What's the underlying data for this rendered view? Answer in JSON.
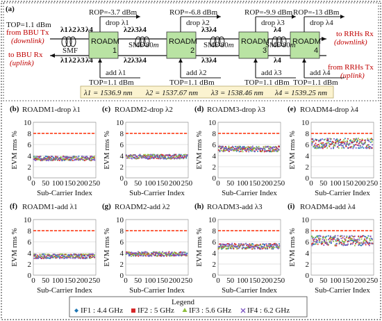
{
  "colors": {
    "lambda1": "#c00000",
    "lambda2": "#7b2c8f",
    "lambda3": "#1f8f2f",
    "lambda4": "#1f3fa0",
    "roadm": "#b9e3a3",
    "threshold": "#ff2a00",
    "banner": "#fbf3d0"
  },
  "diagram": {
    "panel": "(a)",
    "top_left": "TOP=1.1 dBm",
    "bbu_tx": "from BBU Tx",
    "downlink": "(downlink)",
    "bbu_rx": "to BBU Rx",
    "uplink": "(uplink)",
    "rrh_rx": "to RRHs Rx",
    "rrh_tx": "from RRHs Tx",
    "smf_first": "SMF",
    "smf_span": "SMF 80",
    "smf_unit": "m",
    "roadm": "ROADM",
    "rop": [
      "ROP=-3.7 dBm",
      "ROP=-6.8 dBm",
      "ROP=-9.9 dBm",
      "ROP=-13 dBm"
    ],
    "drop": [
      "drop λ1",
      "drop λ2",
      "drop λ3",
      "drop λ4"
    ],
    "add": [
      "add λ1",
      "add λ2",
      "add λ3",
      "add λ4"
    ],
    "top_bottom": "TOP=1.1 dBm",
    "lambda_labels": [
      "λ1",
      "λ2",
      "λ3",
      "λ4"
    ],
    "roadm_numbers": [
      "1",
      "2",
      "3",
      "4"
    ],
    "wavelengths": [
      "λ1 = 1536.9 nm",
      "λ2 = 1537.67 nm",
      "λ3 = 1538.46 nm",
      "λ4 = 1539.25 nm"
    ]
  },
  "chart_data": [
    {
      "type": "scatter",
      "panel": "(b)",
      "title": "ROADM1-drop λ1",
      "xlabel": "Sub-Carrier Index",
      "ylabel": "EVM rms %",
      "xlim": [
        0,
        256
      ],
      "ylim": [
        0,
        10
      ],
      "xticks": [
        0,
        50,
        100,
        150,
        200,
        250
      ],
      "threshold": 8,
      "mean_evm": 3.5,
      "spread": 0.4
    },
    {
      "type": "scatter",
      "panel": "(c)",
      "title": "ROADM2-drop λ2",
      "xlabel": "Sub-Carrier Index",
      "ylabel": "EVM rms %",
      "xlim": [
        0,
        256
      ],
      "ylim": [
        0,
        10
      ],
      "xticks": [
        0,
        50,
        100,
        150,
        200,
        250
      ],
      "threshold": 8,
      "mean_evm": 3.8,
      "spread": 0.4
    },
    {
      "type": "scatter",
      "panel": "(d)",
      "title": "ROADM3-drop λ3",
      "xlabel": "Sub-Carrier Index",
      "ylabel": "EVM rms %",
      "xlim": [
        0,
        256
      ],
      "ylim": [
        0,
        10
      ],
      "xticks": [
        0,
        50,
        100,
        150,
        200,
        250
      ],
      "threshold": 8,
      "mean_evm": 5.2,
      "spread": 0.5
    },
    {
      "type": "scatter",
      "panel": "(e)",
      "title": "ROADM4-drop λ4",
      "xlabel": "Sub-Carrier Index",
      "ylabel": "EVM rms %",
      "xlim": [
        0,
        256
      ],
      "ylim": [
        0,
        10
      ],
      "xticks": [
        0,
        50,
        100,
        150,
        200,
        250
      ],
      "threshold": 8,
      "mean_evm": 6.2,
      "spread": 0.9
    },
    {
      "type": "scatter",
      "panel": "(f)",
      "title": "ROADM1-add λ1",
      "xlabel": "Sub-Carrier Index",
      "ylabel": "EVM rms %",
      "xlim": [
        0,
        256
      ],
      "ylim": [
        0,
        10
      ],
      "xticks": [
        0,
        50,
        100,
        150,
        200,
        250
      ],
      "threshold": 8,
      "mean_evm": 3.4,
      "spread": 0.4
    },
    {
      "type": "scatter",
      "panel": "(g)",
      "title": "ROADM2-add λ2",
      "xlabel": "Sub-Carrier Index",
      "ylabel": "EVM rms %",
      "xlim": [
        0,
        256
      ],
      "ylim": [
        0,
        10
      ],
      "xticks": [
        0,
        50,
        100,
        150,
        200,
        250
      ],
      "threshold": 8,
      "mean_evm": 3.8,
      "spread": 0.4
    },
    {
      "type": "scatter",
      "panel": "(h)",
      "title": "ROADM3-add λ3",
      "xlabel": "Sub-Carrier Index",
      "ylabel": "EVM rms %",
      "xlim": [
        0,
        256
      ],
      "ylim": [
        0,
        10
      ],
      "xticks": [
        0,
        50,
        100,
        150,
        200,
        250
      ],
      "threshold": 8,
      "mean_evm": 5.2,
      "spread": 0.5
    },
    {
      "type": "scatter",
      "panel": "(i)",
      "title": "ROADM4-add λ4",
      "xlabel": "Sub-Carrier Index",
      "ylabel": "EVM rms %",
      "xlim": [
        0,
        256
      ],
      "ylim": [
        0,
        10
      ],
      "xticks": [
        0,
        50,
        100,
        150,
        200,
        250
      ],
      "threshold": 8,
      "mean_evm": 6.2,
      "spread": 0.9
    }
  ],
  "legend": {
    "title": "Legend",
    "items": [
      {
        "label": "IF1 : 4.4 GHz",
        "color": "#1f77b4",
        "marker": "diamond"
      },
      {
        "label": "IF2 : 5 GHz",
        "color": "#d62728",
        "marker": "square"
      },
      {
        "label": "IF3 : 5.6 GHz",
        "color": "#8fbf3f",
        "marker": "triangle"
      },
      {
        "label": "IF4 : 6.2 GHz",
        "color": "#7e57c2",
        "marker": "cross"
      }
    ]
  }
}
